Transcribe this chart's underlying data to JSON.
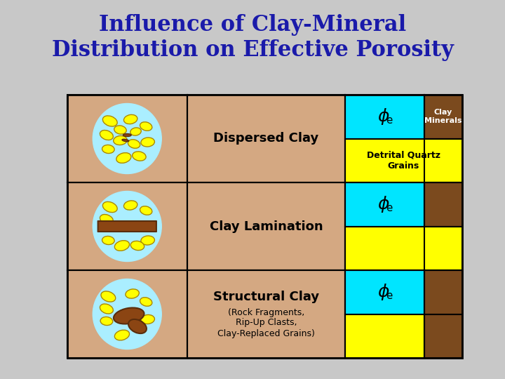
{
  "title": "Influence of Clay-Mineral\nDistribution on Effective Porosity",
  "title_color": "#1a1aaa",
  "bg_color": "#c8c8c8",
  "table_bg": "#d4a882",
  "cyan_color": "#00e5ff",
  "yellow_color": "#ffff00",
  "brown_color": "#7b4a1e",
  "rows": [
    "Dispersed Clay",
    "Clay Lamination",
    "Structural Clay"
  ],
  "row3_subtext": "(Rock Fragments,\nRip-Up Clasts,\nClay-Replaced Grains)",
  "phi_label": "φe",
  "clay_minerals_label": "Clay\nMinerals",
  "detrital_label": "Detrital Quartz\nGrains"
}
